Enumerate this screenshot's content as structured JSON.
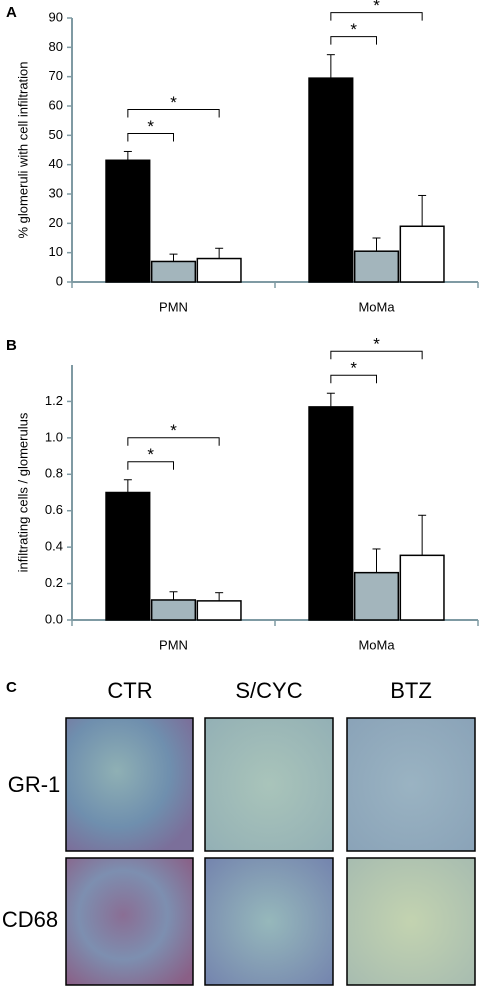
{
  "chart_data": [
    {
      "type": "bar",
      "label": "A",
      "ylabel": "% glomeruli with cell infiltration",
      "categories": [
        "PMN",
        "MoMa"
      ],
      "series": [
        {
          "color": "#000000",
          "values": [
            41.5,
            69.5
          ],
          "errors": [
            3,
            8
          ]
        },
        {
          "color": "#a3b5bc",
          "values": [
            7,
            10.5
          ],
          "errors": [
            2.5,
            4.5
          ]
        },
        {
          "color": "#ffffff",
          "values": [
            8,
            19
          ],
          "errors": [
            3.5,
            10.5
          ]
        }
      ],
      "ylim": [
        0,
        90
      ],
      "yticks": [
        0,
        10,
        20,
        30,
        40,
        50,
        60,
        70,
        80,
        90
      ],
      "brackets": [
        {
          "category": 0,
          "from": 0,
          "to": 1,
          "text": "*"
        },
        {
          "category": 0,
          "from": 0,
          "to": 2,
          "text": "*"
        },
        {
          "category": 1,
          "from": 0,
          "to": 1,
          "text": "*"
        },
        {
          "category": 1,
          "from": 0,
          "to": 2,
          "text": "*"
        }
      ]
    },
    {
      "type": "bar",
      "label": "B",
      "ylabel": "infiltrating cells / glomerulus",
      "categories": [
        "PMN",
        "MoMa"
      ],
      "series": [
        {
          "color": "#000000",
          "values": [
            0.7,
            1.17
          ],
          "errors": [
            0.07,
            0.075
          ]
        },
        {
          "color": "#a3b5bc",
          "values": [
            0.11,
            0.26
          ],
          "errors": [
            0.045,
            0.13
          ]
        },
        {
          "color": "#ffffff",
          "values": [
            0.105,
            0.355
          ],
          "errors": [
            0.045,
            0.22
          ]
        }
      ],
      "ylim": [
        0,
        1.4
      ],
      "yticks": [
        {
          "value": 0,
          "label": "0.0"
        },
        0.2,
        0.4,
        0.6,
        0.8,
        {
          "value": 1,
          "label": "1.0"
        },
        1.2
      ],
      "brackets": [
        {
          "category": 0,
          "from": 0,
          "to": 1,
          "text": "*"
        },
        {
          "category": 0,
          "from": 0,
          "to": 2,
          "text": "*"
        },
        {
          "category": 1,
          "from": 0,
          "to": 1,
          "text": "*"
        },
        {
          "category": 1,
          "from": 0,
          "to": 2,
          "text": "*"
        }
      ]
    }
  ],
  "panel_c": {
    "label": "C",
    "columns": [
      "CTR",
      "S/CYC",
      "BTZ"
    ],
    "rows": [
      "GR-1",
      "CD68"
    ]
  }
}
